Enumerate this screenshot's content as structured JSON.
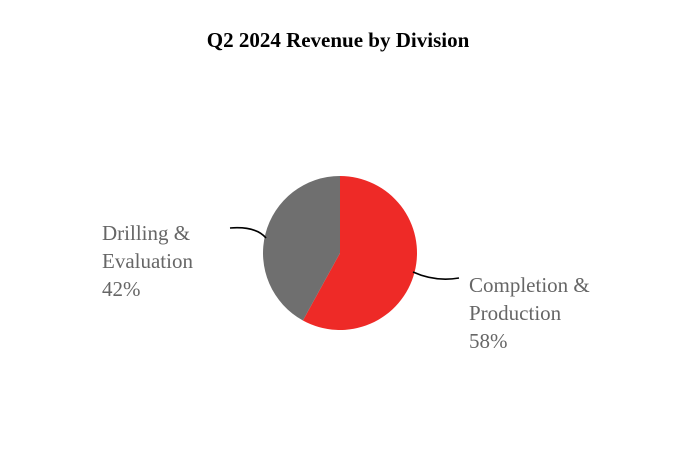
{
  "chart_data": {
    "type": "pie",
    "title": "Q2 2024 Revenue by Division",
    "slices": [
      {
        "label_lines": [
          "Completion &",
          "Production"
        ],
        "value": 58,
        "value_label": "58%",
        "color": "#ee2a27"
      },
      {
        "label_lines": [
          "Drilling &",
          "Evaluation"
        ],
        "value": 42,
        "value_label": "42%",
        "color": "#6f6f6f"
      }
    ],
    "start_angle": "12 o'clock",
    "direction": "clockwise",
    "legend": "none",
    "label_color": "#666666",
    "leader_line_color": "#000000"
  }
}
